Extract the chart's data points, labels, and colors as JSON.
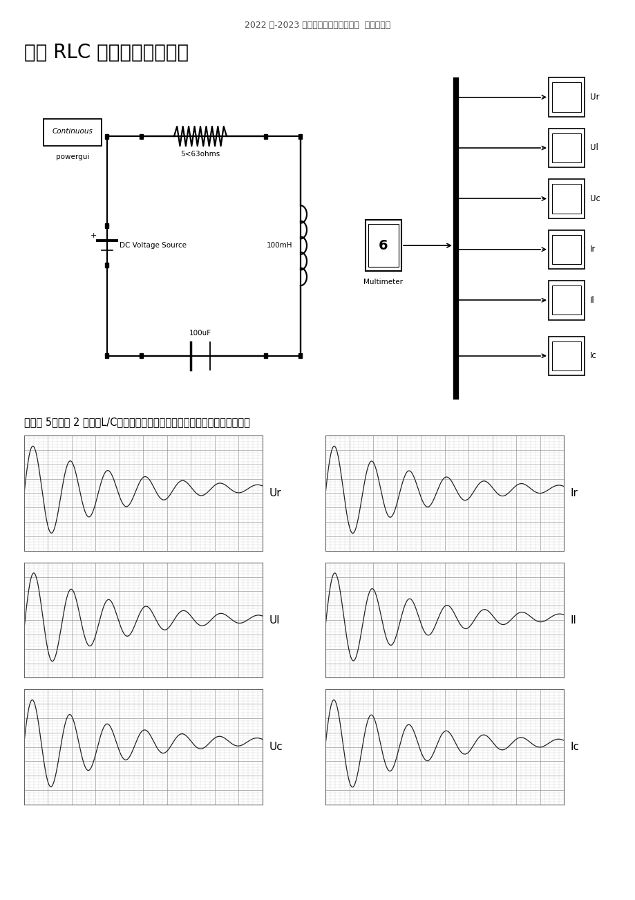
{
  "header_text": "2022 年-2023 年建筑工程管理行业文档  齐鲁斜创作",
  "title": "二阶 RLC 直流动态，欠阻尼",
  "paragraph_text": "电阵取 5，小于 2 根号（L/C），故电路为欠阻尼振荡，电路各个数据如下图：",
  "bg_color": "#ffffff",
  "text_color": "#000000",
  "grid_color": "#999999",
  "line_color": "#222222",
  "plot_labels_left": [
    "Ur",
    "Ul",
    "Uc"
  ],
  "plot_labels_right": [
    "Ir",
    "Il",
    "Ic"
  ],
  "header_fontsize": 9,
  "title_fontsize": 20,
  "paragraph_fontsize": 10.5,
  "alpha_decay": 2.8,
  "omega_osc": 40.0
}
